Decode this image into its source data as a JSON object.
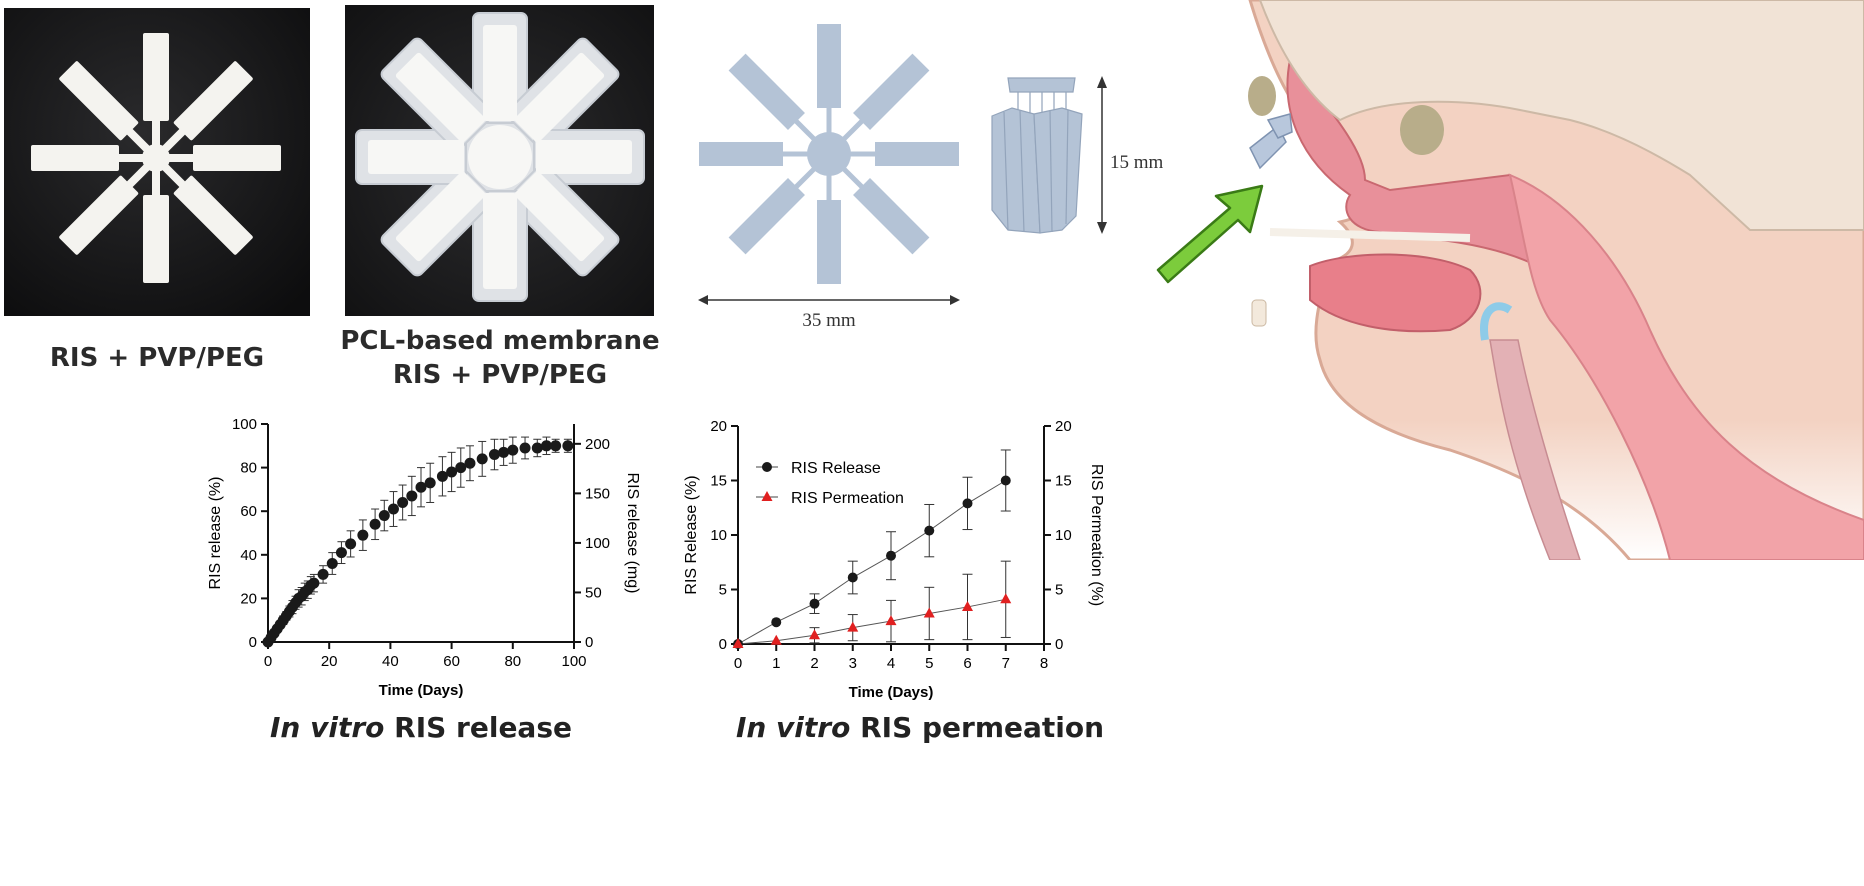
{
  "panels": {
    "photo1": {
      "caption": "RIS + PVP/PEG"
    },
    "photo2": {
      "caption_line1": "PCL-based membrane",
      "caption_line2": "RIS + PVP/PEG"
    },
    "schematic": {
      "width_label": "35 mm",
      "height_label": "15 mm"
    }
  },
  "chart_titles": {
    "release_italic": "In vitro",
    "release_rest": " RIS release",
    "permeation_italic": "In vitro",
    "permeation_rest": " RIS permeation"
  },
  "colors": {
    "release_series": "#1a1a1a",
    "permeation_series": "#e02020",
    "arrow": "#7ccc3c",
    "schematic": "#b4c3d6"
  },
  "chart_data": [
    {
      "type": "scatter",
      "xlabel": "Time (Days)",
      "ylabel": "RIS release (%)",
      "y2label": "RIS release (mg)",
      "xlim": [
        0,
        100
      ],
      "ylim": [
        0,
        100
      ],
      "y2lim": [
        0,
        220
      ],
      "xticks": [
        "0",
        "20",
        "40",
        "60",
        "80",
        "100"
      ],
      "yticks": [
        "0",
        "20",
        "40",
        "60",
        "80",
        "100"
      ],
      "y2ticks": [
        "0",
        "50",
        "100",
        "150",
        "200"
      ],
      "series": [
        {
          "x": [
            0,
            1,
            2,
            3,
            4,
            5,
            6,
            7,
            8,
            9,
            10,
            11,
            12,
            13,
            14,
            15,
            18,
            21,
            24,
            27,
            31,
            35,
            38,
            41,
            44,
            47,
            50,
            53,
            57,
            60,
            63,
            66,
            70,
            74,
            77,
            80,
            84,
            88,
            91,
            94,
            98
          ],
          "y": [
            0,
            2,
            4,
            6,
            8,
            10,
            12,
            14,
            16,
            18,
            20,
            21,
            23,
            24,
            26,
            27,
            31,
            36,
            41,
            45,
            49,
            54,
            58,
            61,
            64,
            67,
            71,
            73,
            76,
            78,
            80,
            82,
            84,
            86,
            87,
            88,
            89,
            89,
            90,
            90,
            90
          ],
          "err": [
            0,
            1,
            1,
            1,
            1.5,
            2,
            2,
            2.5,
            3,
            3,
            4,
            4,
            4,
            4,
            4,
            4,
            4,
            5,
            5,
            6,
            7,
            7,
            7,
            8,
            8,
            9,
            9,
            9,
            9,
            9,
            9,
            8,
            8,
            7,
            6,
            6,
            5,
            4,
            4,
            3,
            3
          ]
        }
      ]
    },
    {
      "type": "line",
      "xlabel": "Time (Days)",
      "ylabel": "RIS Release (%)",
      "y2label": "RIS Permeation (%)",
      "xlim": [
        0,
        8
      ],
      "ylim": [
        0,
        20
      ],
      "y2lim": [
        0,
        20
      ],
      "xticks": [
        "0",
        "1",
        "2",
        "3",
        "4",
        "5",
        "6",
        "7",
        "8"
      ],
      "yticks": [
        "0",
        "5",
        "10",
        "15",
        "20"
      ],
      "y2ticks": [
        "0",
        "5",
        "10",
        "15",
        "20"
      ],
      "legend": "top-left",
      "series": [
        {
          "name": "RIS Release",
          "marker": "circle",
          "x": [
            0,
            1,
            2,
            3,
            4,
            5,
            6,
            7
          ],
          "y": [
            0,
            2.0,
            3.7,
            6.1,
            8.1,
            10.4,
            12.9,
            15.0
          ],
          "err": [
            0,
            0,
            0.9,
            1.5,
            2.2,
            2.4,
            2.4,
            2.8
          ]
        },
        {
          "name": "RIS Permeation",
          "marker": "triangle",
          "x": [
            0,
            1,
            2,
            3,
            4,
            5,
            6,
            7
          ],
          "y": [
            0,
            0.3,
            0.8,
            1.5,
            2.1,
            2.8,
            3.4,
            4.1
          ],
          "err": [
            0,
            0,
            0.7,
            1.2,
            1.9,
            2.4,
            3.0,
            3.5
          ]
        }
      ]
    }
  ]
}
